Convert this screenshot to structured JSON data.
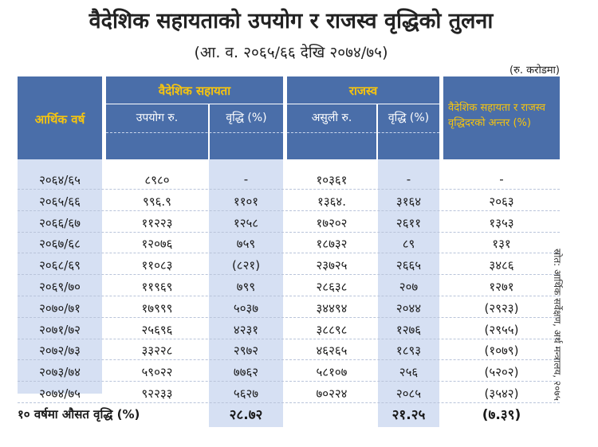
{
  "title": "वैदेशिक सहायताको उपयोग र राजस्व वृद्धिको तुलना",
  "subtitle": "(आ. व. २०६५/६६ देखि २०७४/७५)",
  "unit": "(रु. करोडमा)",
  "header": {
    "fiscal_year": "आर्थिक वर्ष",
    "foreign_aid": "वैदेशिक सहायता",
    "use": "उपयोग रु.",
    "growth": "वृद्धि (%)",
    "revenue": "राजस्व",
    "collection": "असुली रु.",
    "growth2": "वृद्धि (%)",
    "difference": "वैदेशिक सहायता र राजस्व वृद्धिदरको अन्तर (%)"
  },
  "rows": [
    {
      "year": "२०६४/६५",
      "aid": "८९८०",
      "aid_growth": "-",
      "revenue": "१०३६१",
      "rev_growth": "-",
      "diff": "-"
    },
    {
      "year": "२०६५/६६",
      "aid": "९९६.९",
      "aid_growth": "११०१",
      "revenue": "१३६४.",
      "rev_growth": "३१६४",
      "diff": "२०६३"
    },
    {
      "year": "२०६६/६७",
      "aid": "११२२३",
      "aid_growth": "१२५८",
      "revenue": "१७२०२",
      "rev_growth": "२६११",
      "diff": "१३५३"
    },
    {
      "year": "२०६७/६८",
      "aid": "१२०७६",
      "aid_growth": "७५९",
      "revenue": "१८७३२",
      "rev_growth": "८९",
      "diff": "१३१"
    },
    {
      "year": "२०६८/६९",
      "aid": "११०८३",
      "aid_growth": "(८२१)",
      "revenue": "२३७२५",
      "rev_growth": "२६६५",
      "diff": "३४८६"
    },
    {
      "year": "२०६९/७०",
      "aid": "११९६९",
      "aid_growth": "७९९",
      "revenue": "२८६३८",
      "rev_growth": "२०७",
      "diff": "१२७१"
    },
    {
      "year": "२०७०/७१",
      "aid": "१७९९९",
      "aid_growth": "५०३७",
      "revenue": "३४४९४",
      "rev_growth": "२०४४",
      "diff": "(२९२३)"
    },
    {
      "year": "२०७१/७२",
      "aid": "२५६९६",
      "aid_growth": "४२३१",
      "revenue": "३८८९८",
      "rev_growth": "१२७६",
      "diff": "(२९५५)"
    },
    {
      "year": "२०७२/७३",
      "aid": "३३२२८",
      "aid_growth": "२९७२",
      "revenue": "४६२६५",
      "rev_growth": "१८९३",
      "diff": "(१०७९)"
    },
    {
      "year": "२०७३/७४",
      "aid": "५९०२२",
      "aid_growth": "७७६२",
      "revenue": "५८१०७",
      "rev_growth": "२५६",
      "diff": "(५२०२)"
    },
    {
      "year": "२०७४/७५",
      "aid": "९२२३३",
      "aid_growth": "५६२७",
      "revenue": "७०२२४",
      "rev_growth": "२०८५",
      "diff": "(३५४२)"
    }
  ],
  "footer": {
    "label": "१० वर्षमा औसत वृद्धि (%)",
    "aid_growth": "२८.७२",
    "rev_growth": "२१.२५",
    "diff": "(७.३९)"
  },
  "source": "स्रोत: आर्थिक सर्वेक्षण, अर्थ मन्त्रालय, २०७५",
  "colors": {
    "header_blue": "#4a6ea9",
    "stripe": "#d6e0f3",
    "gold_text": "#f6c40f"
  }
}
